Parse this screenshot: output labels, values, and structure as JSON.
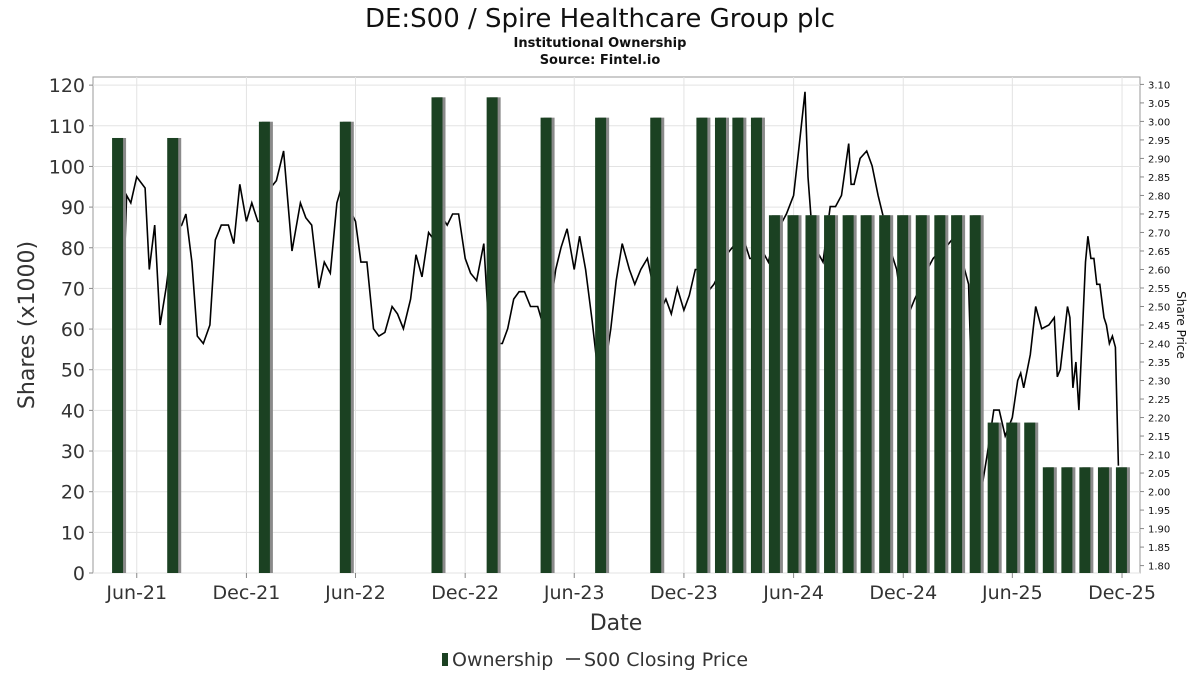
{
  "title": "DE:S00 / Spire Healthcare Group plc",
  "subtitle": "Institutional Ownership",
  "source": "Source: Fintel.io",
  "colors": {
    "bar": "#1b4122",
    "bar_shadow": "#8a8a8a",
    "line": "#000000",
    "grid": "#e3e3e3",
    "axis_text": "#333333"
  },
  "chart_data": {
    "type": "bar",
    "xlabel": "Date",
    "ylabel_left": "Shares (x1000)",
    "ylabel_right": "Share Price",
    "x_range": [
      "2021-03-20",
      "2025-12-31"
    ],
    "ylim_left": [
      0,
      122
    ],
    "ylim_right": [
      1.78,
      3.12
    ],
    "yticks_left": [
      0,
      10,
      20,
      30,
      40,
      50,
      60,
      70,
      80,
      90,
      100,
      110,
      120
    ],
    "yticks_right": [
      "1.80",
      "1.85",
      "1.90",
      "1.95",
      "2.00",
      "2.05",
      "2.10",
      "2.15",
      "2.20",
      "2.25",
      "2.30",
      "2.35",
      "2.40",
      "2.45",
      "2.50",
      "2.55",
      "2.60",
      "2.65",
      "2.70",
      "2.75",
      "2.80",
      "2.85",
      "2.90",
      "2.95",
      "3.00",
      "3.05",
      "3.10"
    ],
    "xticks": [
      {
        "date": "2021-06-01",
        "label": "Jun-21"
      },
      {
        "date": "2021-12-01",
        "label": "Dec-21"
      },
      {
        "date": "2022-06-01",
        "label": "Jun-22"
      },
      {
        "date": "2022-12-01",
        "label": "Dec-22"
      },
      {
        "date": "2023-06-01",
        "label": "Jun-23"
      },
      {
        "date": "2023-12-01",
        "label": "Dec-23"
      },
      {
        "date": "2024-06-01",
        "label": "Jun-24"
      },
      {
        "date": "2024-12-01",
        "label": "Dec-24"
      },
      {
        "date": "2025-06-01",
        "label": "Jun-25"
      },
      {
        "date": "2025-12-01",
        "label": "Dec-25"
      }
    ],
    "grid": true,
    "legend_position": "bottom",
    "series": [
      {
        "name": "Ownership",
        "type": "bar",
        "points": [
          [
            "2021-04-30",
            107
          ],
          [
            "2021-07-31",
            107
          ],
          [
            "2021-12-31",
            111
          ],
          [
            "2022-05-15",
            111
          ],
          [
            "2022-10-15",
            117
          ],
          [
            "2023-01-15",
            117
          ],
          [
            "2023-04-15",
            112
          ],
          [
            "2023-07-15",
            112
          ],
          [
            "2023-10-15",
            112
          ],
          [
            "2023-12-31",
            112
          ],
          [
            "2024-01-31",
            112
          ],
          [
            "2024-02-29",
            112
          ],
          [
            "2024-03-31",
            112
          ],
          [
            "2024-04-30",
            88
          ],
          [
            "2024-05-31",
            88
          ],
          [
            "2024-06-30",
            88
          ],
          [
            "2024-07-31",
            88
          ],
          [
            "2024-08-31",
            88
          ],
          [
            "2024-09-30",
            88
          ],
          [
            "2024-10-31",
            88
          ],
          [
            "2024-11-30",
            88
          ],
          [
            "2024-12-31",
            88
          ],
          [
            "2025-01-31",
            88
          ],
          [
            "2025-02-28",
            88
          ],
          [
            "2025-03-31",
            88
          ],
          [
            "2025-04-30",
            37
          ],
          [
            "2025-05-31",
            37
          ],
          [
            "2025-06-30",
            37
          ],
          [
            "2025-07-31",
            26
          ],
          [
            "2025-08-31",
            26
          ],
          [
            "2025-09-30",
            26
          ],
          [
            "2025-10-31",
            26
          ],
          [
            "2025-11-30",
            26
          ]
        ]
      },
      {
        "name": "S00 Closing Price",
        "type": "line",
        "points": [
          [
            "2021-05-01",
            2.1
          ],
          [
            "2021-05-15",
            2.8
          ],
          [
            "2021-05-22",
            2.78
          ],
          [
            "2021-06-01",
            2.85
          ],
          [
            "2021-06-15",
            2.82
          ],
          [
            "2021-06-22",
            2.6
          ],
          [
            "2021-07-01",
            2.72
          ],
          [
            "2021-07-10",
            2.45
          ],
          [
            "2021-07-20",
            2.55
          ],
          [
            "2021-08-01",
            2.7
          ],
          [
            "2021-08-15",
            2.72
          ],
          [
            "2021-08-22",
            2.75
          ],
          [
            "2021-09-01",
            2.62
          ],
          [
            "2021-09-10",
            2.42
          ],
          [
            "2021-09-20",
            2.4
          ],
          [
            "2021-10-01",
            2.45
          ],
          [
            "2021-10-10",
            2.68
          ],
          [
            "2021-10-20",
            2.72
          ],
          [
            "2021-11-01",
            2.72
          ],
          [
            "2021-11-10",
            2.67
          ],
          [
            "2021-11-20",
            2.83
          ],
          [
            "2021-12-01",
            2.73
          ],
          [
            "2021-12-10",
            2.78
          ],
          [
            "2021-12-20",
            2.73
          ],
          [
            "2022-01-01",
            2.73
          ],
          [
            "2022-01-10",
            2.82
          ],
          [
            "2022-01-20",
            2.84
          ],
          [
            "2022-02-01",
            2.92
          ],
          [
            "2022-02-15",
            2.65
          ],
          [
            "2022-03-01",
            2.78
          ],
          [
            "2022-03-10",
            2.74
          ],
          [
            "2022-03-20",
            2.72
          ],
          [
            "2022-04-01",
            2.55
          ],
          [
            "2022-04-10",
            2.62
          ],
          [
            "2022-04-20",
            2.59
          ],
          [
            "2022-05-01",
            2.78
          ],
          [
            "2022-05-10",
            2.83
          ],
          [
            "2022-05-20",
            2.77
          ],
          [
            "2022-06-01",
            2.73
          ],
          [
            "2022-06-10",
            2.62
          ],
          [
            "2022-06-20",
            2.62
          ],
          [
            "2022-07-01",
            2.44
          ],
          [
            "2022-07-10",
            2.42
          ],
          [
            "2022-07-20",
            2.43
          ],
          [
            "2022-08-01",
            2.5
          ],
          [
            "2022-08-10",
            2.48
          ],
          [
            "2022-08-20",
            2.44
          ],
          [
            "2022-09-01",
            2.52
          ],
          [
            "2022-09-10",
            2.64
          ],
          [
            "2022-09-20",
            2.58
          ],
          [
            "2022-10-01",
            2.7
          ],
          [
            "2022-10-10",
            2.68
          ],
          [
            "2022-10-20",
            2.75
          ],
          [
            "2022-11-01",
            2.72
          ],
          [
            "2022-11-10",
            2.75
          ],
          [
            "2022-11-20",
            2.75
          ],
          [
            "2022-12-01",
            2.63
          ],
          [
            "2022-12-10",
            2.59
          ],
          [
            "2022-12-20",
            2.57
          ],
          [
            "2023-01-01",
            2.67
          ],
          [
            "2023-01-15",
            2.29
          ],
          [
            "2023-01-25",
            2.4
          ],
          [
            "2023-02-01",
            2.4
          ],
          [
            "2023-02-10",
            2.44
          ],
          [
            "2023-02-20",
            2.52
          ],
          [
            "2023-03-01",
            2.54
          ],
          [
            "2023-03-10",
            2.54
          ],
          [
            "2023-03-20",
            2.5
          ],
          [
            "2023-04-01",
            2.5
          ],
          [
            "2023-04-10",
            2.45
          ],
          [
            "2023-04-20",
            2.47
          ],
          [
            "2023-05-01",
            2.6
          ],
          [
            "2023-05-10",
            2.66
          ],
          [
            "2023-05-20",
            2.71
          ],
          [
            "2023-06-01",
            2.6
          ],
          [
            "2023-06-10",
            2.69
          ],
          [
            "2023-06-20",
            2.6
          ],
          [
            "2023-07-01",
            2.46
          ],
          [
            "2023-07-10",
            2.33
          ],
          [
            "2023-07-20",
            2.31
          ],
          [
            "2023-08-01",
            2.44
          ],
          [
            "2023-08-10",
            2.57
          ],
          [
            "2023-08-20",
            2.67
          ],
          [
            "2023-09-01",
            2.6
          ],
          [
            "2023-09-10",
            2.56
          ],
          [
            "2023-09-20",
            2.6
          ],
          [
            "2023-10-01",
            2.63
          ],
          [
            "2023-10-10",
            2.56
          ],
          [
            "2023-10-20",
            2.48
          ],
          [
            "2023-11-01",
            2.52
          ],
          [
            "2023-11-10",
            2.48
          ],
          [
            "2023-11-20",
            2.55
          ],
          [
            "2023-12-01",
            2.49
          ],
          [
            "2023-12-10",
            2.53
          ],
          [
            "2023-12-20",
            2.6
          ],
          [
            "2024-01-01",
            2.6
          ],
          [
            "2024-01-10",
            2.54
          ],
          [
            "2024-01-20",
            2.56
          ],
          [
            "2024-02-01",
            2.6
          ],
          [
            "2024-02-10",
            2.64
          ],
          [
            "2024-02-20",
            2.66
          ],
          [
            "2024-03-01",
            2.63
          ],
          [
            "2024-03-10",
            2.68
          ],
          [
            "2024-03-20",
            2.63
          ],
          [
            "2024-04-01",
            2.63
          ],
          [
            "2024-04-10",
            2.65
          ],
          [
            "2024-04-20",
            2.62
          ],
          [
            "2024-05-01",
            2.7
          ],
          [
            "2024-05-10",
            2.72
          ],
          [
            "2024-05-20",
            2.75
          ],
          [
            "2024-06-01",
            2.8
          ],
          [
            "2024-06-10",
            2.93
          ],
          [
            "2024-06-20",
            3.08
          ],
          [
            "2024-06-25",
            2.85
          ],
          [
            "2024-07-01",
            2.72
          ],
          [
            "2024-07-10",
            2.65
          ],
          [
            "2024-07-20",
            2.62
          ],
          [
            "2024-08-01",
            2.77
          ],
          [
            "2024-08-10",
            2.77
          ],
          [
            "2024-08-20",
            2.8
          ],
          [
            "2024-09-01",
            2.94
          ],
          [
            "2024-09-05",
            2.83
          ],
          [
            "2024-09-10",
            2.83
          ],
          [
            "2024-09-20",
            2.9
          ],
          [
            "2024-10-01",
            2.92
          ],
          [
            "2024-10-10",
            2.88
          ],
          [
            "2024-10-20",
            2.8
          ],
          [
            "2024-11-01",
            2.72
          ],
          [
            "2024-11-10",
            2.65
          ],
          [
            "2024-11-20",
            2.6
          ],
          [
            "2024-12-01",
            2.47
          ],
          [
            "2024-12-10",
            2.48
          ],
          [
            "2024-12-20",
            2.52
          ],
          [
            "2025-01-01",
            2.56
          ],
          [
            "2025-01-10",
            2.6
          ],
          [
            "2025-01-20",
            2.63
          ],
          [
            "2025-02-01",
            2.65
          ],
          [
            "2025-02-10",
            2.66
          ],
          [
            "2025-02-20",
            2.68
          ],
          [
            "2025-03-01",
            2.67
          ],
          [
            "2025-03-10",
            2.62
          ],
          [
            "2025-03-20",
            2.56
          ],
          [
            "2025-04-01",
            1.9
          ],
          [
            "2025-04-10",
            2.0
          ],
          [
            "2025-04-20",
            2.1
          ],
          [
            "2025-05-01",
            2.22
          ],
          [
            "2025-05-10",
            2.22
          ],
          [
            "2025-05-20",
            2.15
          ],
          [
            "2025-06-01",
            2.2
          ],
          [
            "2025-06-10",
            2.3
          ],
          [
            "2025-06-15",
            2.32
          ],
          [
            "2025-06-20",
            2.28
          ],
          [
            "2025-07-01",
            2.37
          ],
          [
            "2025-07-10",
            2.5
          ],
          [
            "2025-07-20",
            2.44
          ],
          [
            "2025-08-01",
            2.45
          ],
          [
            "2025-08-10",
            2.47
          ],
          [
            "2025-08-15",
            2.31
          ],
          [
            "2025-08-20",
            2.33
          ],
          [
            "2025-09-01",
            2.5
          ],
          [
            "2025-09-05",
            2.47
          ],
          [
            "2025-09-10",
            2.28
          ],
          [
            "2025-09-15",
            2.35
          ],
          [
            "2025-09-20",
            2.22
          ],
          [
            "2025-10-01",
            2.62
          ],
          [
            "2025-10-05",
            2.69
          ],
          [
            "2025-10-10",
            2.63
          ],
          [
            "2025-10-15",
            2.63
          ],
          [
            "2025-10-20",
            2.56
          ],
          [
            "2025-10-25",
            2.56
          ],
          [
            "2025-11-01",
            2.47
          ],
          [
            "2025-11-05",
            2.45
          ],
          [
            "2025-11-10",
            2.4
          ],
          [
            "2025-11-15",
            2.42
          ],
          [
            "2025-11-20",
            2.39
          ],
          [
            "2025-11-25",
            2.07
          ]
        ]
      }
    ]
  }
}
